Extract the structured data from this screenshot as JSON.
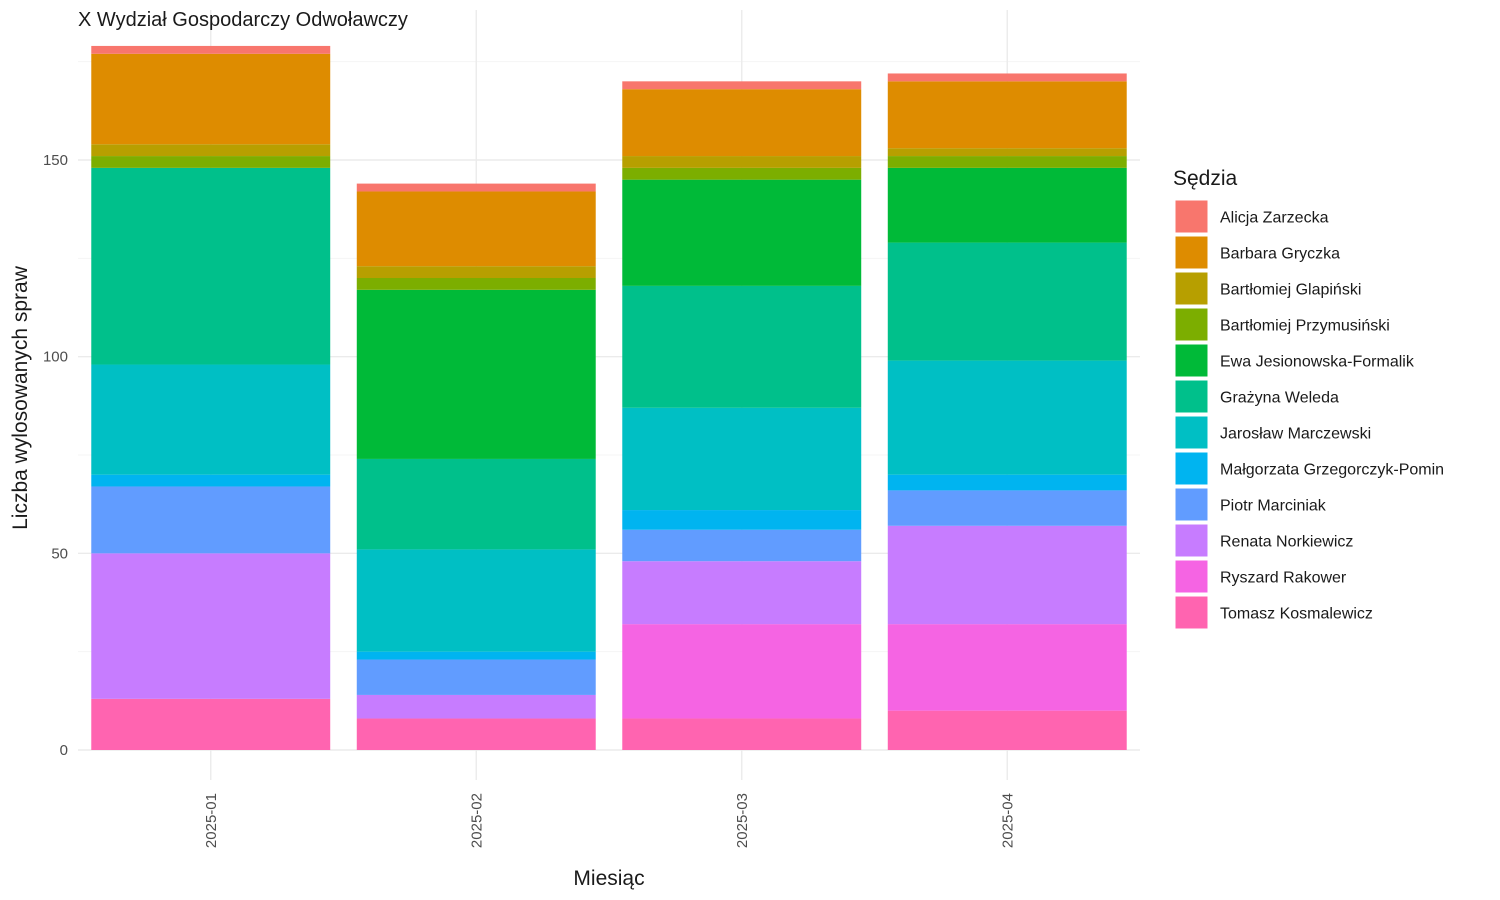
{
  "chart_data": {
    "type": "bar",
    "stacked": true,
    "title": "X Wydział Gospodarczy Odwoławczy",
    "xlabel": "Miesiąc",
    "ylabel": "Liczba wylosowanych spraw",
    "categories": [
      "2025-01",
      "2025-02",
      "2025-03",
      "2025-04"
    ],
    "ylim": [
      0,
      180
    ],
    "yticks": [
      0,
      50,
      100,
      150
    ],
    "grid": true,
    "legend": {
      "title": "Sędzia",
      "position": "right"
    },
    "series": [
      {
        "name": "Alicja Zarzecka",
        "color": "#F8766D",
        "values": [
          2,
          2,
          2,
          2
        ]
      },
      {
        "name": "Barbara Gryczka",
        "color": "#DE8C00",
        "values": [
          23,
          19,
          17,
          17
        ]
      },
      {
        "name": "Bartłomiej Glapiński",
        "color": "#B79F00",
        "values": [
          3,
          3,
          3,
          2
        ]
      },
      {
        "name": "Bartłomiej Przymusiński",
        "color": "#7CAE00",
        "values": [
          3,
          3,
          3,
          3
        ]
      },
      {
        "name": "Ewa Jesionowska-Formalik",
        "color": "#00BA38",
        "values": [
          0,
          43,
          27,
          19
        ]
      },
      {
        "name": "Grażyna Weleda",
        "color": "#00C08B",
        "values": [
          50,
          23,
          31,
          30
        ]
      },
      {
        "name": "Jarosław Marczewski",
        "color": "#00BFC4",
        "values": [
          28,
          26,
          26,
          29
        ]
      },
      {
        "name": "Małgorzata Grzegorczyk-Pomin",
        "color": "#00B4F0",
        "values": [
          3,
          2,
          5,
          4
        ]
      },
      {
        "name": "Piotr Marciniak",
        "color": "#619CFF",
        "values": [
          17,
          9,
          8,
          9
        ]
      },
      {
        "name": "Renata Norkiewicz",
        "color": "#C77CFF",
        "values": [
          37,
          6,
          16,
          25
        ]
      },
      {
        "name": "Ryszard Rakower",
        "color": "#F564E3",
        "values": [
          0,
          0,
          24,
          22
        ]
      },
      {
        "name": "Tomasz Kosmalewicz",
        "color": "#FF64B0",
        "values": [
          13,
          8,
          8,
          10
        ]
      }
    ]
  }
}
